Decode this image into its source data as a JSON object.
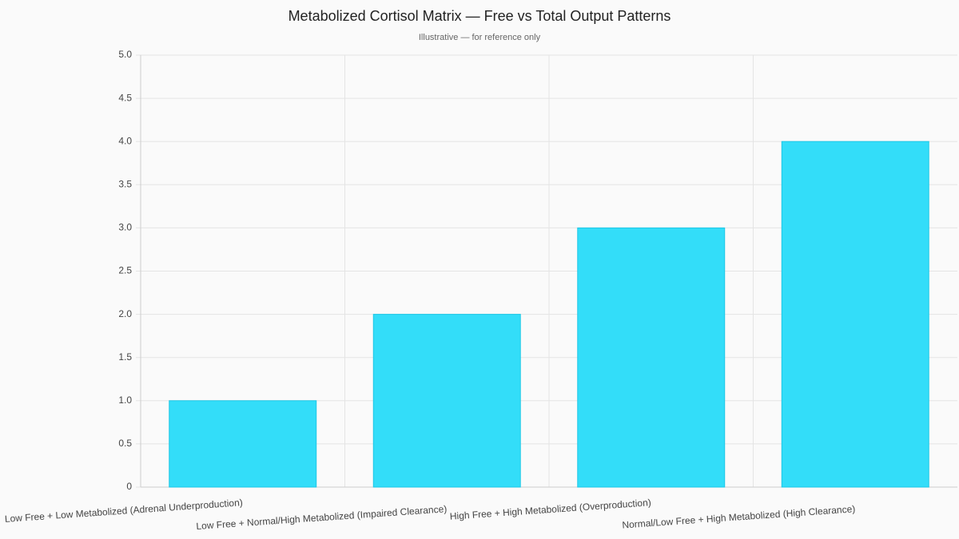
{
  "chart_data": {
    "type": "bar",
    "title": "Metabolized Cortisol Matrix — Free vs Total Output Patterns",
    "subtitle": "Illustrative — for reference only",
    "categories": [
      "Low Free + Low Metabolized (Adrenal Underproduction)",
      "Low Free + Normal/High Metabolized (Impaired Clearance)",
      "High Free + High Metabolized (Overproduction)",
      "Normal/Low Free + High Metabolized (High Clearance)"
    ],
    "values": [
      1,
      2,
      3,
      4
    ],
    "color": "#33ddf9",
    "ylim": [
      0,
      5
    ],
    "yticks": [
      0,
      0.5,
      {
        "value": 1,
        "label": "1.0"
      },
      1.5,
      {
        "value": 2,
        "label": "2.0"
      },
      2.5,
      {
        "value": 3,
        "label": "3.0"
      },
      3.5,
      {
        "value": 4,
        "label": "4.0"
      },
      4.5,
      {
        "value": 5,
        "label": "5.0"
      }
    ],
    "grid": true
  }
}
